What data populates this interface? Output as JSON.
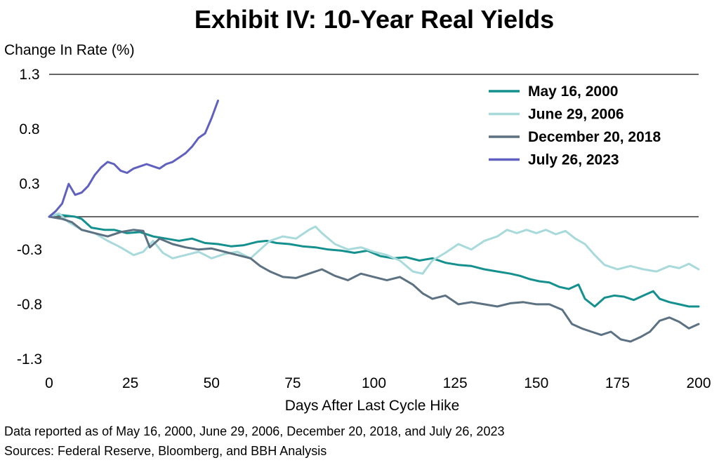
{
  "chart_data": {
    "type": "line",
    "title": "Exhibit IV: 10-Year Real Yields",
    "ylabel": "Change In Rate (%)",
    "xlabel": "Days After Last Cycle Hike",
    "xlim": [
      0,
      200
    ],
    "ylim": [
      -1.3,
      1.3
    ],
    "x_ticks": [
      0,
      25,
      50,
      75,
      100,
      125,
      150,
      175,
      200
    ],
    "y_ticks": [
      "1.3",
      "0.8",
      "0.3",
      "-0.3",
      "-0.8",
      "-1.3"
    ],
    "y_tick_values": [
      1.3,
      0.8,
      0.3,
      -0.3,
      -0.8,
      -1.3
    ],
    "gridlines_y": [
      1.3,
      0
    ],
    "legend_position": "top-right",
    "series": [
      {
        "name": "May 16, 2000",
        "color": "#14908f",
        "points": [
          [
            0,
            0
          ],
          [
            2,
            0.02
          ],
          [
            5,
            0.01
          ],
          [
            8,
            0
          ],
          [
            10,
            -0.02
          ],
          [
            13,
            -0.1
          ],
          [
            17,
            -0.12
          ],
          [
            20,
            -0.12
          ],
          [
            24,
            -0.15
          ],
          [
            28,
            -0.14
          ],
          [
            32,
            -0.18
          ],
          [
            36,
            -0.2
          ],
          [
            40,
            -0.22
          ],
          [
            44,
            -0.2
          ],
          [
            48,
            -0.24
          ],
          [
            52,
            -0.25
          ],
          [
            56,
            -0.27
          ],
          [
            60,
            -0.26
          ],
          [
            64,
            -0.23
          ],
          [
            67,
            -0.22
          ],
          [
            70,
            -0.24
          ],
          [
            74,
            -0.25
          ],
          [
            78,
            -0.27
          ],
          [
            82,
            -0.28
          ],
          [
            86,
            -0.3
          ],
          [
            90,
            -0.31
          ],
          [
            94,
            -0.33
          ],
          [
            98,
            -0.31
          ],
          [
            102,
            -0.36
          ],
          [
            106,
            -0.38
          ],
          [
            110,
            -0.37
          ],
          [
            114,
            -0.4
          ],
          [
            118,
            -0.38
          ],
          [
            122,
            -0.42
          ],
          [
            126,
            -0.44
          ],
          [
            130,
            -0.45
          ],
          [
            134,
            -0.48
          ],
          [
            138,
            -0.5
          ],
          [
            142,
            -0.52
          ],
          [
            145,
            -0.54
          ],
          [
            148,
            -0.57
          ],
          [
            151,
            -0.59
          ],
          [
            154,
            -0.6
          ],
          [
            157,
            -0.64
          ],
          [
            160,
            -0.66
          ],
          [
            163,
            -0.62
          ],
          [
            165,
            -0.75
          ],
          [
            168,
            -0.82
          ],
          [
            171,
            -0.74
          ],
          [
            174,
            -0.72
          ],
          [
            177,
            -0.73
          ],
          [
            180,
            -0.76
          ],
          [
            183,
            -0.72
          ],
          [
            186,
            -0.68
          ],
          [
            188,
            -0.75
          ],
          [
            191,
            -0.78
          ],
          [
            194,
            -0.8
          ],
          [
            197,
            -0.82
          ],
          [
            200,
            -0.82
          ]
        ]
      },
      {
        "name": "June 29, 2006",
        "color": "#a8dadc",
        "points": [
          [
            0,
            0
          ],
          [
            3,
            0.03
          ],
          [
            6,
            -0.05
          ],
          [
            10,
            -0.12
          ],
          [
            14,
            -0.15
          ],
          [
            18,
            -0.22
          ],
          [
            22,
            -0.28
          ],
          [
            26,
            -0.35
          ],
          [
            29,
            -0.32
          ],
          [
            32,
            -0.22
          ],
          [
            35,
            -0.33
          ],
          [
            38,
            -0.38
          ],
          [
            42,
            -0.35
          ],
          [
            46,
            -0.32
          ],
          [
            50,
            -0.38
          ],
          [
            54,
            -0.34
          ],
          [
            58,
            -0.32
          ],
          [
            62,
            -0.38
          ],
          [
            65,
            -0.3
          ],
          [
            68,
            -0.22
          ],
          [
            72,
            -0.18
          ],
          [
            76,
            -0.2
          ],
          [
            80,
            -0.12
          ],
          [
            82,
            -0.09
          ],
          [
            84,
            -0.15
          ],
          [
            88,
            -0.25
          ],
          [
            92,
            -0.3
          ],
          [
            96,
            -0.28
          ],
          [
            100,
            -0.32
          ],
          [
            104,
            -0.35
          ],
          [
            108,
            -0.4
          ],
          [
            112,
            -0.5
          ],
          [
            115,
            -0.52
          ],
          [
            118,
            -0.4
          ],
          [
            122,
            -0.33
          ],
          [
            126,
            -0.25
          ],
          [
            130,
            -0.3
          ],
          [
            134,
            -0.22
          ],
          [
            138,
            -0.18
          ],
          [
            141,
            -0.12
          ],
          [
            144,
            -0.15
          ],
          [
            147,
            -0.12
          ],
          [
            150,
            -0.15
          ],
          [
            153,
            -0.12
          ],
          [
            156,
            -0.16
          ],
          [
            159,
            -0.13
          ],
          [
            162,
            -0.2
          ],
          [
            165,
            -0.25
          ],
          [
            168,
            -0.35
          ],
          [
            171,
            -0.44
          ],
          [
            175,
            -0.48
          ],
          [
            179,
            -0.45
          ],
          [
            183,
            -0.48
          ],
          [
            187,
            -0.5
          ],
          [
            191,
            -0.45
          ],
          [
            194,
            -0.47
          ],
          [
            197,
            -0.43
          ],
          [
            200,
            -0.48
          ]
        ]
      },
      {
        "name": "December 20, 2018",
        "color": "#5c7182",
        "points": [
          [
            0,
            0
          ],
          [
            4,
            -0.02
          ],
          [
            7,
            -0.05
          ],
          [
            10,
            -0.12
          ],
          [
            14,
            -0.15
          ],
          [
            18,
            -0.18
          ],
          [
            22,
            -0.14
          ],
          [
            26,
            -0.12
          ],
          [
            29,
            -0.13
          ],
          [
            31,
            -0.28
          ],
          [
            34,
            -0.2
          ],
          [
            38,
            -0.25
          ],
          [
            42,
            -0.28
          ],
          [
            46,
            -0.3
          ],
          [
            50,
            -0.29
          ],
          [
            54,
            -0.32
          ],
          [
            58,
            -0.35
          ],
          [
            62,
            -0.38
          ],
          [
            65,
            -0.45
          ],
          [
            68,
            -0.5
          ],
          [
            72,
            -0.55
          ],
          [
            76,
            -0.56
          ],
          [
            80,
            -0.52
          ],
          [
            84,
            -0.48
          ],
          [
            88,
            -0.54
          ],
          [
            92,
            -0.58
          ],
          [
            96,
            -0.52
          ],
          [
            100,
            -0.55
          ],
          [
            104,
            -0.58
          ],
          [
            108,
            -0.55
          ],
          [
            112,
            -0.62
          ],
          [
            115,
            -0.7
          ],
          [
            118,
            -0.75
          ],
          [
            122,
            -0.72
          ],
          [
            126,
            -0.8
          ],
          [
            130,
            -0.78
          ],
          [
            134,
            -0.8
          ],
          [
            138,
            -0.82
          ],
          [
            142,
            -0.79
          ],
          [
            146,
            -0.78
          ],
          [
            150,
            -0.8
          ],
          [
            154,
            -0.8
          ],
          [
            158,
            -0.85
          ],
          [
            161,
            -0.98
          ],
          [
            164,
            -1.02
          ],
          [
            167,
            -1.05
          ],
          [
            170,
            -1.08
          ],
          [
            173,
            -1.05
          ],
          [
            176,
            -1.12
          ],
          [
            179,
            -1.14
          ],
          [
            182,
            -1.1
          ],
          [
            185,
            -1.05
          ],
          [
            188,
            -0.95
          ],
          [
            191,
            -0.92
          ],
          [
            194,
            -0.96
          ],
          [
            197,
            -1.02
          ],
          [
            200,
            -0.98
          ]
        ]
      },
      {
        "name": "July 26, 2023",
        "color": "#6060c0",
        "points": [
          [
            0,
            0
          ],
          [
            2,
            0.05
          ],
          [
            4,
            0.12
          ],
          [
            6,
            0.3
          ],
          [
            8,
            0.2
          ],
          [
            10,
            0.22
          ],
          [
            12,
            0.28
          ],
          [
            14,
            0.38
          ],
          [
            16,
            0.45
          ],
          [
            18,
            0.5
          ],
          [
            20,
            0.48
          ],
          [
            22,
            0.42
          ],
          [
            24,
            0.4
          ],
          [
            26,
            0.44
          ],
          [
            28,
            0.46
          ],
          [
            30,
            0.48
          ],
          [
            32,
            0.46
          ],
          [
            34,
            0.44
          ],
          [
            36,
            0.48
          ],
          [
            38,
            0.5
          ],
          [
            40,
            0.54
          ],
          [
            42,
            0.58
          ],
          [
            44,
            0.64
          ],
          [
            46,
            0.72
          ],
          [
            48,
            0.76
          ],
          [
            50,
            0.9
          ],
          [
            52,
            1.06
          ]
        ]
      }
    ]
  },
  "notes": {
    "line1": "Data reported as of May 16, 2000, June 29, 2006, December 20, 2018, and July 26, 2023",
    "line2": "Sources: Federal Reserve, Bloomberg, and BBH Analysis"
  }
}
